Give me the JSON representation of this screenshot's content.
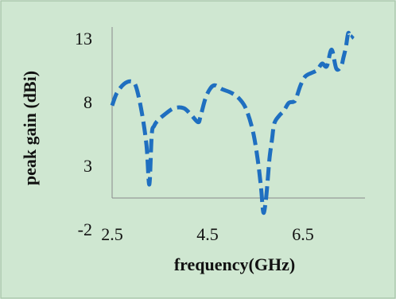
{
  "colors": {
    "background": "#cfe7d1",
    "border": "#a9c7ab",
    "series": "#1f6fc0",
    "axis": "#8a8a8a"
  },
  "chart_data": {
    "type": "line",
    "xlabel": "frequency(GHz)",
    "ylabel": "peak gain (dBi)",
    "xlim": [
      2.5,
      7.8
    ],
    "ylim": [
      -2,
      13
    ],
    "x_ticks": [
      2.5,
      4.5,
      6.5
    ],
    "x_tick_labels": [
      "2.5",
      "4.5",
      "6.5"
    ],
    "y_ticks": [
      -2,
      3,
      8,
      13
    ],
    "y_tick_labels": [
      "-2",
      "3",
      "8",
      "13"
    ],
    "grid": false,
    "line_style": "dashed",
    "series": [
      {
        "x": [
          2.5,
          2.6,
          2.75,
          2.9,
          3.0,
          3.12,
          3.22,
          3.28,
          3.33,
          3.38,
          3.45,
          3.6,
          3.8,
          4.0,
          4.15,
          4.3,
          4.35,
          4.45,
          4.55,
          4.65,
          4.8,
          5.0,
          5.15,
          5.3,
          5.45,
          5.55,
          5.62,
          5.67,
          5.72,
          5.76,
          5.8,
          5.85,
          5.9,
          6.0,
          6.1,
          6.2,
          6.3,
          6.35,
          6.45,
          6.55,
          6.7,
          6.8,
          6.9,
          7.0,
          7.1,
          7.2,
          7.3,
          7.35,
          7.4,
          7.45,
          7.5,
          7.55
        ],
        "y": [
          7.7,
          8.7,
          9.4,
          9.6,
          9.2,
          7.2,
          4.6,
          1.5,
          5.4,
          6.1,
          6.5,
          7.0,
          7.5,
          7.5,
          7.0,
          6.4,
          6.8,
          8.2,
          9.0,
          9.3,
          9.0,
          8.7,
          8.3,
          7.5,
          5.7,
          3.5,
          1.3,
          -0.7,
          0.2,
          1.8,
          3.6,
          5.0,
          6.3,
          6.9,
          7.3,
          7.9,
          8.0,
          8.2,
          9.3,
          10.0,
          10.3,
          10.5,
          11.0,
          10.8,
          12.1,
          10.6,
          10.8,
          11.5,
          12.3,
          13.4,
          13.0,
          13.2
        ]
      }
    ]
  }
}
